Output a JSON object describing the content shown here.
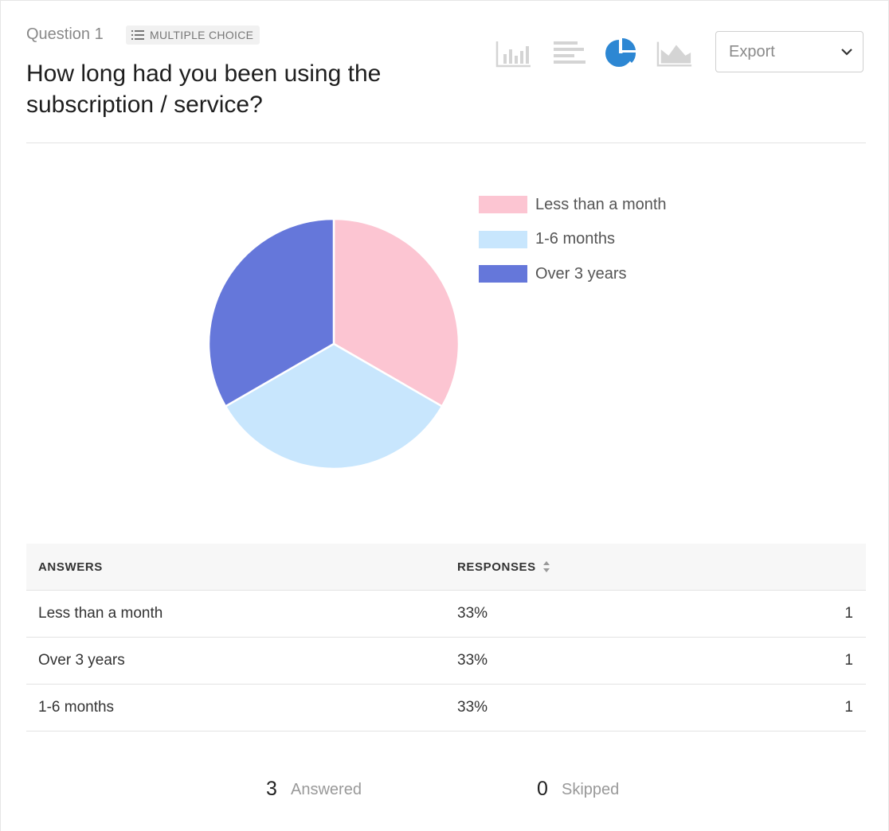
{
  "question": {
    "label": "Question 1",
    "type_label": "MULTIPLE CHOICE",
    "type_icon": "list-icon",
    "title": "How long had you been using the subscription / service?"
  },
  "toolbar": {
    "view_icons": [
      "vertical-bar-chart-icon",
      "horizontal-bar-chart-icon",
      "pie-chart-icon",
      "area-chart-icon"
    ],
    "active_view": "pie-chart-icon",
    "active_color": "#2d87d3",
    "inactive_color": "#d4d4d4",
    "export_label": "Export",
    "export_icon": "chevron-down-icon"
  },
  "chart_data": {
    "type": "pie",
    "categories": [
      "Less than a month",
      "1-6 months",
      "Over 3 years"
    ],
    "values": [
      1,
      1,
      1
    ],
    "colors": [
      "#fcc5d2",
      "#c8e6fd",
      "#6577da"
    ],
    "legend_position": "right"
  },
  "table": {
    "headers": {
      "answers": "ANSWERS",
      "responses": "RESPONSES",
      "sort_icon": "sort-icon"
    },
    "rows": [
      {
        "answer": "Less than a month",
        "percent": "33%",
        "count": "1"
      },
      {
        "answer": "Over 3 years",
        "percent": "33%",
        "count": "1"
      },
      {
        "answer": "1-6 months",
        "percent": "33%",
        "count": "1"
      }
    ]
  },
  "summary": {
    "answered_count": "3",
    "answered_label": "Answered",
    "skipped_count": "0",
    "skipped_label": "Skipped"
  }
}
